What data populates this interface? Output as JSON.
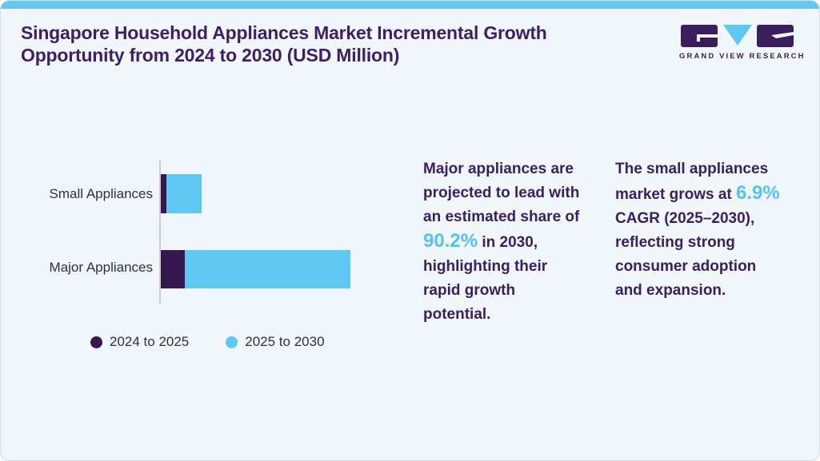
{
  "header": {
    "title": "Singapore Household Appliances Market Incremental Growth Opportunity from 2024 to 2030 (USD Million)",
    "logo_brand": "GRAND VIEW RESEARCH"
  },
  "chart_data": {
    "type": "bar",
    "orientation": "horizontal",
    "stacked": true,
    "title": "Singapore Household Appliances Market Incremental Growth Opportunity from 2024 to 2030 (USD Million)",
    "categories": [
      "Small Appliances",
      "Major Appliances"
    ],
    "series": [
      {
        "name": "2024 to 2025",
        "color": "#36184e",
        "values": [
          7,
          30
        ]
      },
      {
        "name": "2025 to 2030",
        "color": "#5ec8f2",
        "values": [
          44,
          207
        ]
      }
    ],
    "value_axis": "unlabeled (relative incremental growth, USD Million)",
    "grid": false,
    "legend_position": "bottom"
  },
  "insights": [
    {
      "pre": "Major appliances are projected to lead with an estimated share of ",
      "highlight": "90.2%",
      "post": " in 2030, highlighting their rapid growth potential."
    },
    {
      "pre": "The small appliances market grows at ",
      "highlight": "6.9%",
      "post": " CAGR (2025–2030), reflecting strong consumer adoption and expansion."
    }
  ],
  "colors": {
    "accent_blue": "#5ec8f2",
    "accent_purple": "#36184e",
    "title_purple": "#3f1e63",
    "top_strip": "#64c7ef",
    "card_background": "#f1f6fa"
  }
}
